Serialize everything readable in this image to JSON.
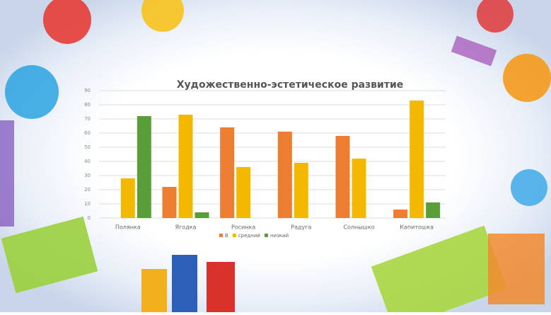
{
  "chart_data": {
    "type": "bar",
    "title": "Художественно-эстетическое развитие",
    "categories": [
      "Полянка",
      "Ягодка",
      "Росинка",
      "Радуга",
      "Солнышко",
      "Капитошка"
    ],
    "series": [
      {
        "name": "В",
        "color": "#ed7d31",
        "values": [
          0,
          22,
          64,
          61,
          58,
          6
        ]
      },
      {
        "name": "средний",
        "color": "#f5b800",
        "values": [
          28,
          73,
          36,
          39,
          42,
          83
        ]
      },
      {
        "name": "низкий",
        "color": "#5a9e3a",
        "values": [
          72,
          4,
          0,
          0,
          0,
          11
        ]
      }
    ],
    "ylim": [
      0,
      90
    ],
    "yticks": [
      0,
      10,
      20,
      30,
      40,
      50,
      60,
      70,
      80,
      90
    ],
    "grid": true,
    "legend": "bottom"
  }
}
